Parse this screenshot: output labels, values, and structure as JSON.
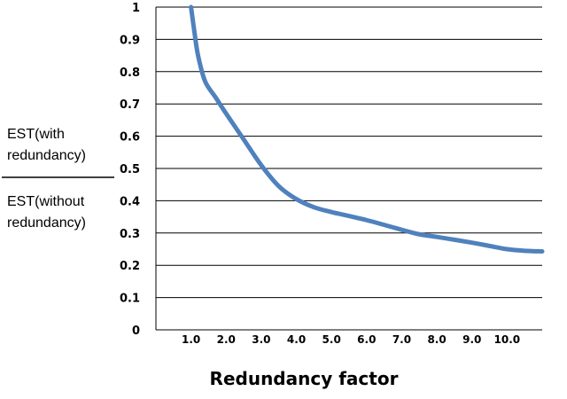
{
  "chart_data": {
    "type": "line",
    "xlabel": "Redundancy factor",
    "ylabel": {
      "numerator": [
        "EST(with",
        "redundancy)"
      ],
      "denominator": [
        "EST(without",
        "redundancy)"
      ]
    },
    "ylim": [
      0,
      1
    ],
    "yticks": [
      "0",
      "0.1",
      "0.2",
      "0.3",
      "0.4",
      "0.5",
      "0.6",
      "0.7",
      "0.8",
      "0.9",
      "1"
    ],
    "xlim": [
      0,
      11
    ],
    "xticks": [
      {
        "value": 1,
        "label": "1.0"
      },
      {
        "value": 2,
        "label": "2.0"
      },
      {
        "value": 3,
        "label": "3.0"
      },
      {
        "value": 4,
        "label": "4.0"
      },
      {
        "value": 5,
        "label": "5.0"
      },
      {
        "value": 6,
        "label": "6.0"
      },
      {
        "value": 7,
        "label": "7.0"
      },
      {
        "value": 8,
        "label": "8.0"
      },
      {
        "value": 9,
        "label": "9.0"
      },
      {
        "value": 10,
        "label": "10.0"
      }
    ],
    "grid": true,
    "series": [
      {
        "color": "#4f81bd",
        "x": [
          1.0,
          1.1,
          1.2,
          1.4,
          1.7,
          2.0,
          2.5,
          3.0,
          3.5,
          4.0,
          4.5,
          5.0,
          6.0,
          7.0,
          7.5,
          8.0,
          9.0,
          9.5,
          10.0,
          10.5,
          11.0
        ],
        "y": [
          1.0,
          0.92,
          0.85,
          0.77,
          0.72,
          0.67,
          0.59,
          0.51,
          0.445,
          0.405,
          0.38,
          0.365,
          0.34,
          0.31,
          0.296,
          0.288,
          0.27,
          0.26,
          0.25,
          0.245,
          0.243
        ]
      }
    ]
  }
}
